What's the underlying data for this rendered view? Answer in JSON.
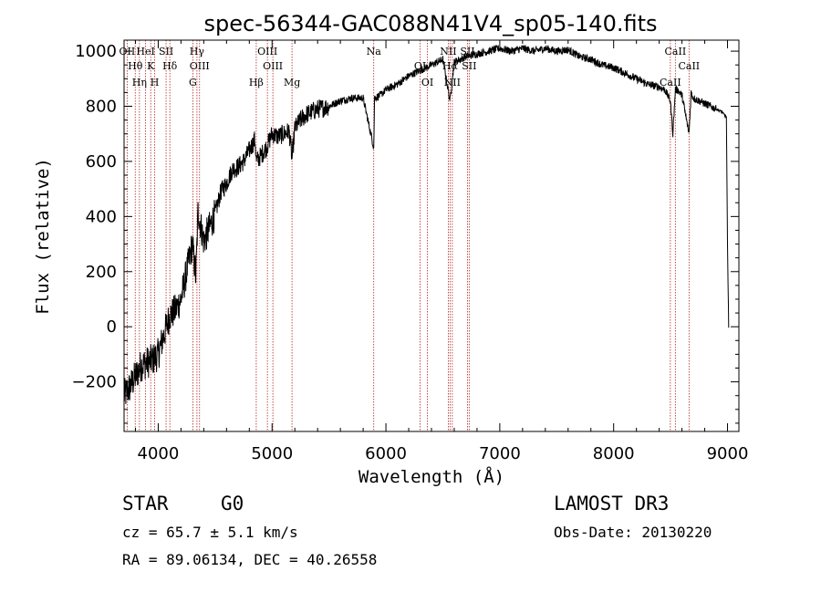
{
  "chart_data": {
    "type": "line",
    "title": "spec-56344-GAC088N41V4_sp05-140.fits",
    "xlabel": "Wavelength (Å)",
    "ylabel": "Flux (relative)",
    "xlim": [
      3700,
      9100
    ],
    "ylim": [
      -380,
      1040
    ],
    "xticks": [
      4000,
      5000,
      6000,
      7000,
      8000,
      9000
    ],
    "xtick_labels": [
      "4000",
      "5000",
      "6000",
      "7000",
      "8000",
      "9000"
    ],
    "yticks": [
      -200,
      0,
      200,
      400,
      600,
      800,
      1000
    ],
    "ytick_labels": [
      "−200",
      "0",
      "200",
      "400",
      "600",
      "800",
      "1000"
    ],
    "series": [
      {
        "name": "flux",
        "x": [
          3700,
          3750,
          3800,
          3850,
          3900,
          3950,
          4000,
          4050,
          4100,
          4150,
          4200,
          4250,
          4300,
          4330,
          4350,
          4400,
          4450,
          4500,
          4550,
          4600,
          4650,
          4700,
          4750,
          4800,
          4850,
          4861,
          4900,
          4950,
          5000,
          5050,
          5100,
          5150,
          5175,
          5200,
          5250,
          5300,
          5400,
          5500,
          5600,
          5700,
          5800,
          5893,
          5900,
          5950,
          6000,
          6100,
          6200,
          6300,
          6400,
          6500,
          6563,
          6600,
          6700,
          6800,
          6900,
          7000,
          7100,
          7200,
          7300,
          7400,
          7500,
          7600,
          7700,
          7800,
          7900,
          8000,
          8100,
          8200,
          8300,
          8400,
          8450,
          8498,
          8520,
          8542,
          8560,
          8600,
          8662,
          8680,
          8700,
          8750,
          8800,
          8850,
          8900,
          8950,
          8990,
          9000,
          9010
        ],
        "y": [
          -250,
          -220,
          -180,
          -140,
          -130,
          -120,
          -100,
          -30,
          40,
          60,
          100,
          200,
          300,
          180,
          420,
          310,
          360,
          410,
          490,
          520,
          570,
          580,
          600,
          640,
          680,
          600,
          620,
          650,
          700,
          690,
          700,
          710,
          610,
          720,
          750,
          770,
          790,
          800,
          820,
          830,
          830,
          650,
          830,
          840,
          860,
          880,
          910,
          930,
          950,
          970,
          820,
          960,
          980,
          990,
          1000,
          1010,
          1000,
          1010,
          1000,
          1010,
          1000,
          1005,
          980,
          970,
          950,
          940,
          920,
          900,
          880,
          870,
          860,
          820,
          700,
          860,
          860,
          840,
          700,
          850,
          830,
          820,
          810,
          800,
          790,
          780,
          760,
          300,
          0
        ]
      }
    ],
    "annotations": {
      "lines": [
        {
          "wl": 3727,
          "label": "OII"
        },
        {
          "wl": 3798,
          "label": "Hθ"
        },
        {
          "wl": 3835,
          "label": "Hη"
        },
        {
          "wl": 3889,
          "label": "HeI"
        },
        {
          "wl": 3934,
          "label": "K"
        },
        {
          "wl": 3969,
          "label": "H"
        },
        {
          "wl": 4069,
          "label": "SII"
        },
        {
          "wl": 4102,
          "label": "Hδ"
        },
        {
          "wl": 4304,
          "label": "G"
        },
        {
          "wl": 4340,
          "label": "Hγ"
        },
        {
          "wl": 4363,
          "label": "OIII"
        },
        {
          "wl": 4861,
          "label": "Hβ"
        },
        {
          "wl": 4959,
          "label": "OIII"
        },
        {
          "wl": 5007,
          "label": "OIII"
        },
        {
          "wl": 5175,
          "label": "Mg"
        },
        {
          "wl": 5893,
          "label": "Na"
        },
        {
          "wl": 6300,
          "label": "OI"
        },
        {
          "wl": 6364,
          "label": "OI"
        },
        {
          "wl": 6548,
          "label": "NII"
        },
        {
          "wl": 6563,
          "label": "Hα"
        },
        {
          "wl": 6583,
          "label": "NII"
        },
        {
          "wl": 6716,
          "label": "SII"
        },
        {
          "wl": 6731,
          "label": "SII"
        },
        {
          "wl": 8498,
          "label": "CaII"
        },
        {
          "wl": 8542,
          "label": "CaII"
        },
        {
          "wl": 8662,
          "label": "CaII"
        }
      ]
    }
  },
  "info": {
    "object_class": "STAR",
    "subclass": "G0",
    "survey": "LAMOST DR3",
    "cz": "cz = 65.7 ± 5.1 km/s",
    "obs_date": "Obs-Date: 20130220",
    "coords": "RA =  89.06134, DEC =  40.26558"
  },
  "colors": {
    "spectrum": "#000000",
    "marker_line": "#b22222",
    "axes": "#000000"
  }
}
